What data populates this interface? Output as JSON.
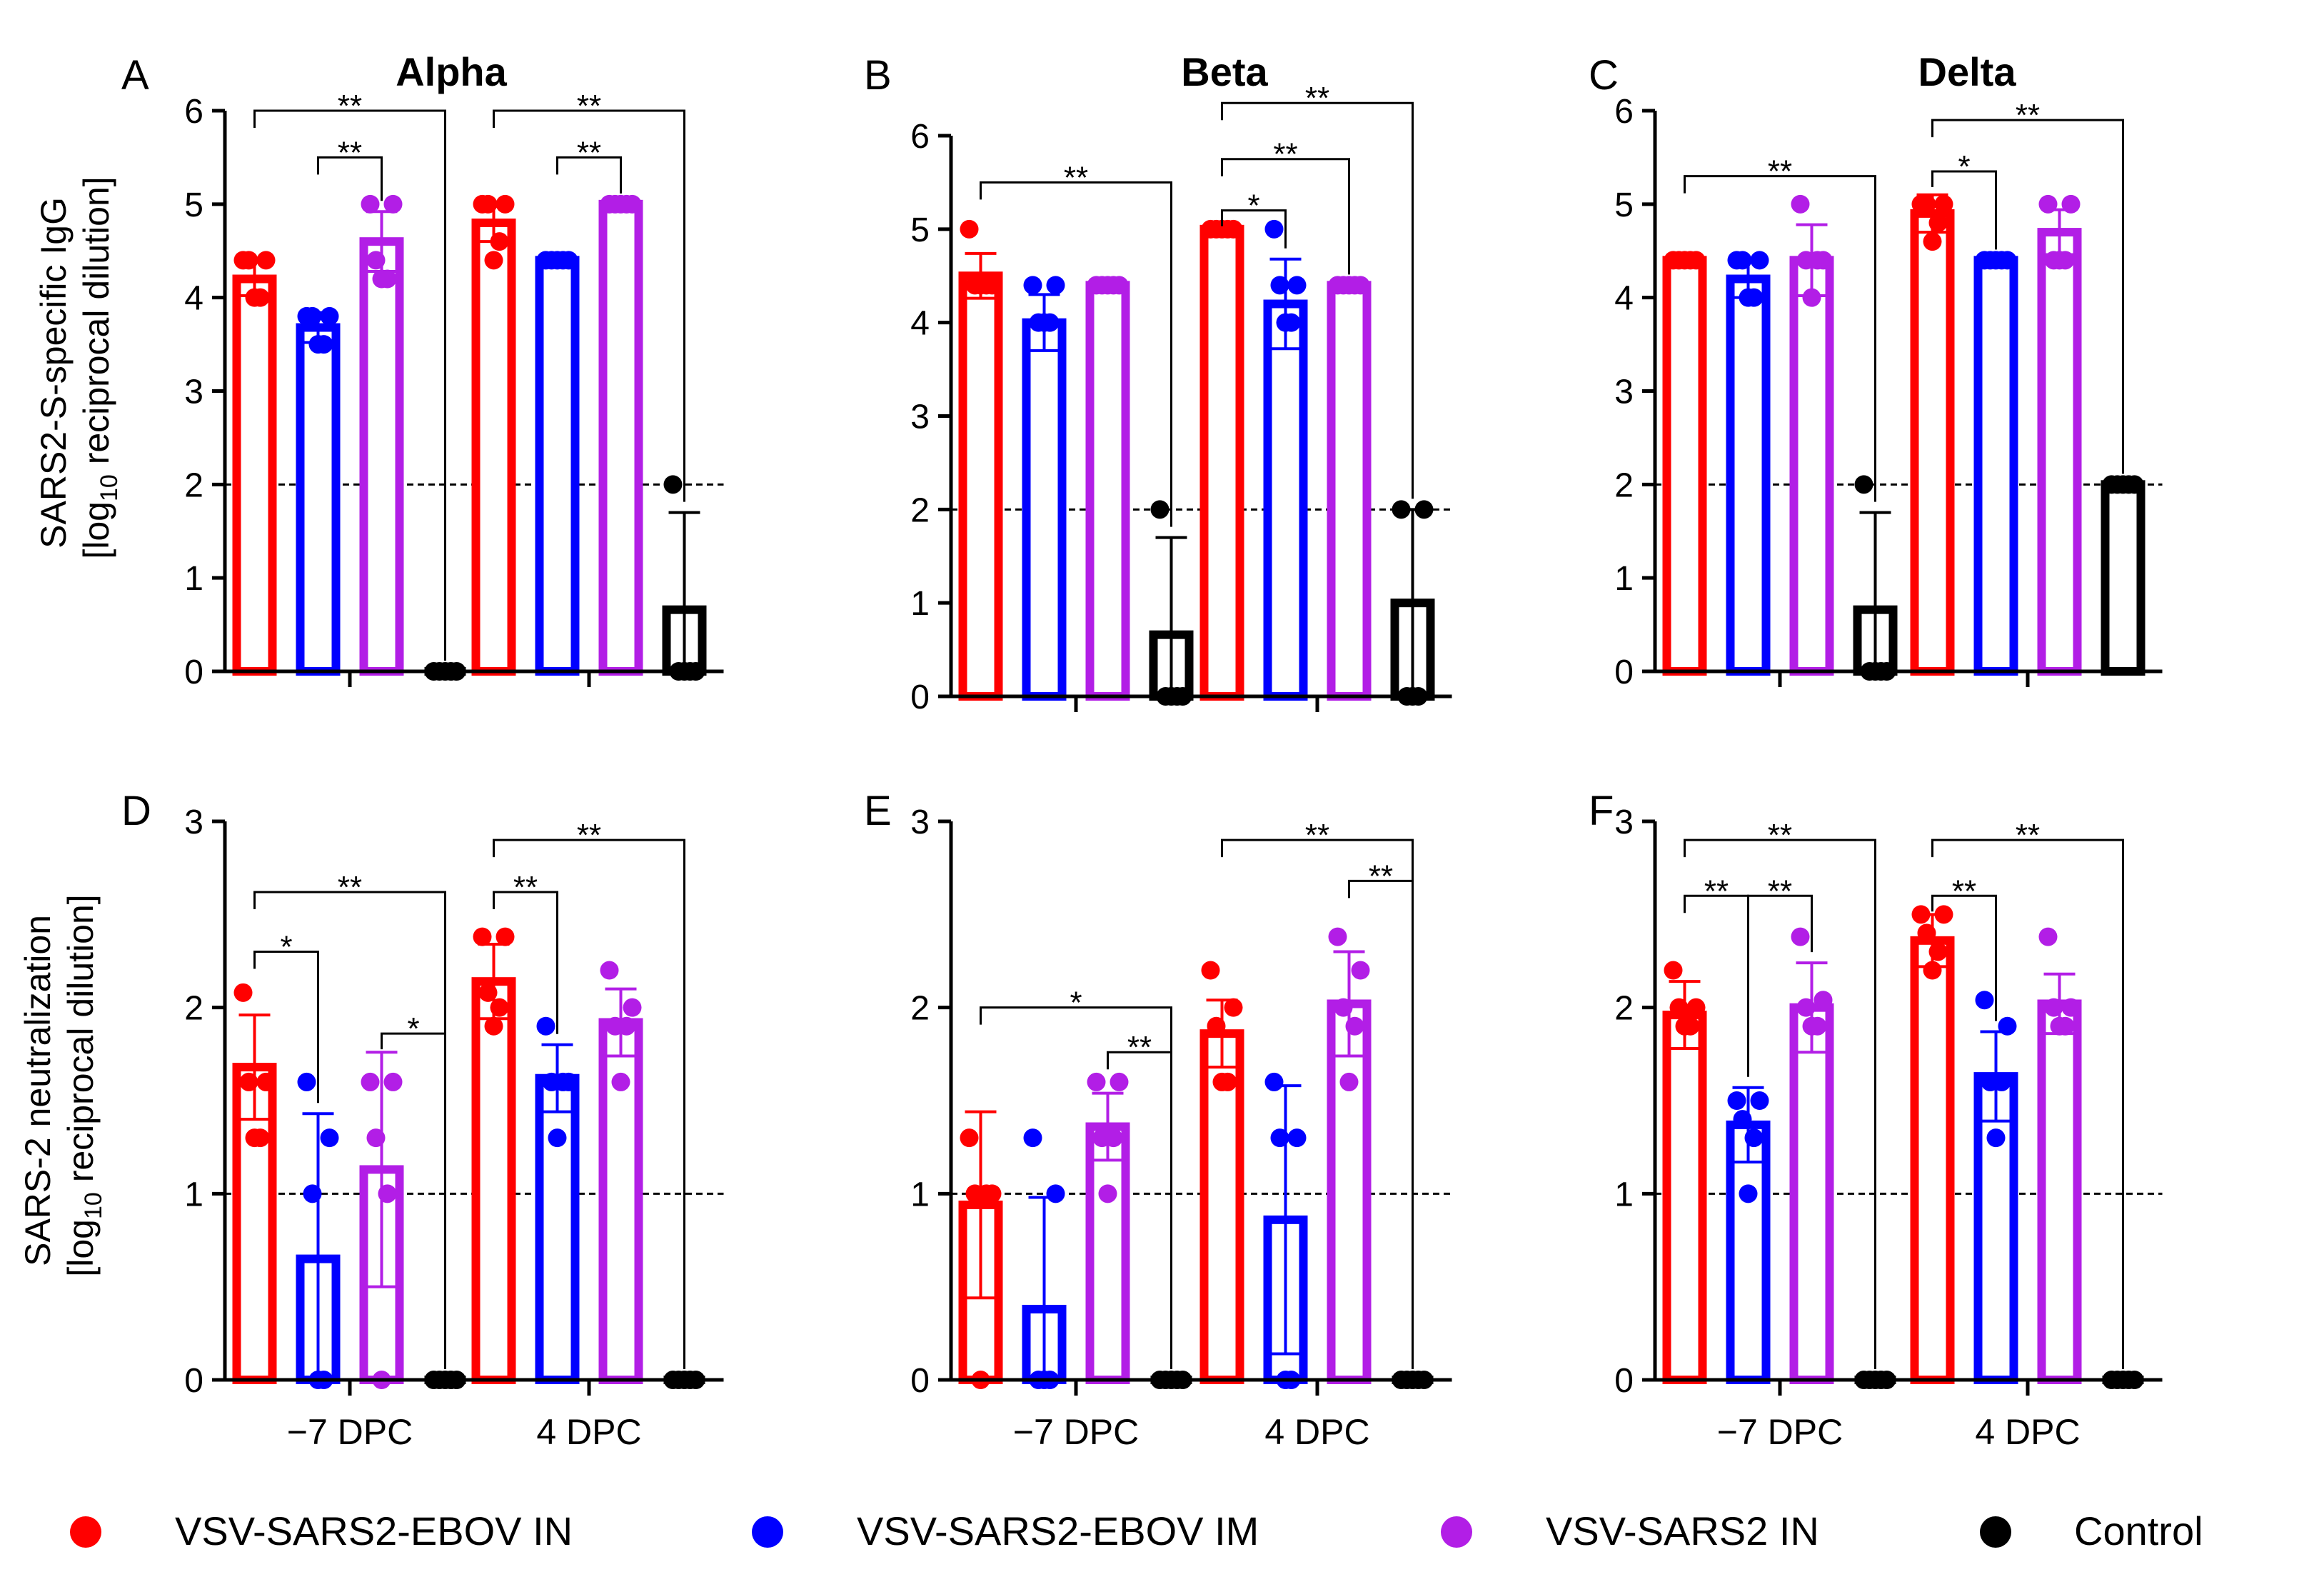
{
  "legend": [
    {
      "label": "VSV-SARS2-EBOV IN",
      "color": "#ff0000"
    },
    {
      "label": "VSV-SARS2-EBOV IM",
      "color": "#0000ff"
    },
    {
      "label": "VSV-SARS2 IN",
      "color": "#b21ee6"
    },
    {
      "label": "Control",
      "color": "#000000"
    }
  ],
  "row_labels": {
    "top_line1": "SARS2-S-specific IgG",
    "top_line2_pre": "[log",
    "top_line2_sub": "10",
    "top_line2_post": " reciprocal dilution]",
    "bottom_line1": "SARS-2 neutralization",
    "bottom_line2_pre": "[log",
    "bottom_line2_sub": "10",
    "bottom_line2_post": " reciprocal dilution]"
  },
  "chart_data": [
    {
      "panel": "A",
      "title": "Alpha",
      "type": "bar",
      "categories": [
        "−7 DPC",
        "4 DPC"
      ],
      "show_category_labels": false,
      "ylim": [
        0,
        6
      ],
      "yticks": [
        0,
        1,
        2,
        3,
        4,
        5,
        6
      ],
      "threshold": 2,
      "series": [
        {
          "name": "VSV-SARS2-EBOV IN",
          "color": "#ff0000",
          "values": [
            4.2,
            4.8
          ],
          "errors": [
            0.18,
            0.2
          ],
          "points": [
            [
              4.4,
              4.4,
              4.4,
              4.0,
              4.0
            ],
            [
              5.0,
              5.0,
              5.0,
              4.6,
              4.4
            ]
          ]
        },
        {
          "name": "VSV-SARS2-EBOV IM",
          "color": "#0000ff",
          "values": [
            3.68,
            4.4
          ],
          "errors": [
            0.16,
            0
          ],
          "points": [
            [
              3.8,
              3.8,
              3.8,
              3.5,
              3.5
            ],
            [
              4.4,
              4.4,
              4.4,
              4.4,
              4.4
            ]
          ]
        },
        {
          "name": "VSV-SARS2 IN",
          "color": "#b21ee6",
          "values": [
            4.6,
            5.0
          ],
          "errors": [
            0.32,
            0
          ],
          "points": [
            [
              5.0,
              5.0,
              4.4,
              4.2,
              4.2
            ],
            [
              5.0,
              5.0,
              5.0,
              5.0,
              5.0
            ]
          ]
        },
        {
          "name": "Control",
          "color": "#000000",
          "values": [
            0,
            0.66
          ],
          "errors": [
            0,
            1.04
          ],
          "points": [
            [
              0,
              0,
              0,
              0,
              0
            ],
            [
              2.0,
              0,
              0,
              0,
              0
            ]
          ]
        }
      ],
      "significance": [
        {
          "group": 0,
          "from": 0,
          "to": 3,
          "level": 6.0,
          "label": "**"
        },
        {
          "group": 0,
          "from": 1,
          "to": 2,
          "level": 5.5,
          "label": "**"
        },
        {
          "group": 1,
          "from": 0,
          "to": 3,
          "level": 6.0,
          "label": "**"
        },
        {
          "group": 1,
          "from": 1,
          "to": 2,
          "level": 5.5,
          "label": "**"
        }
      ]
    },
    {
      "panel": "B",
      "title": "Beta",
      "type": "bar",
      "categories": [
        "−7 DPC",
        "4 DPC"
      ],
      "show_category_labels": false,
      "ylim": [
        0,
        6
      ],
      "yticks": [
        0,
        1,
        2,
        3,
        4,
        5,
        6
      ],
      "threshold": 2,
      "series": [
        {
          "name": "VSV-SARS2-EBOV IN",
          "color": "#ff0000",
          "values": [
            4.5,
            5.0
          ],
          "errors": [
            0.24,
            0
          ],
          "points": [
            [
              5.0,
              4.4,
              4.4,
              4.4,
              4.4
            ],
            [
              5.0,
              5.0,
              5.0,
              5.0,
              5.0
            ]
          ]
        },
        {
          "name": "VSV-SARS2-EBOV IM",
          "color": "#0000ff",
          "values": [
            4.0,
            4.2
          ],
          "errors": [
            0.3,
            0.48
          ],
          "points": [
            [
              4.4,
              4.4,
              4.0,
              4.0,
              4.0
            ],
            [
              5.0,
              4.4,
              4.4,
              4.0,
              4.0
            ]
          ]
        },
        {
          "name": "VSV-SARS2 IN",
          "color": "#b21ee6",
          "values": [
            4.4,
            4.4
          ],
          "errors": [
            0,
            0
          ],
          "points": [
            [
              4.4,
              4.4,
              4.4,
              4.4,
              4.4
            ],
            [
              4.4,
              4.4,
              4.4,
              4.4,
              4.4
            ]
          ]
        },
        {
          "name": "Control",
          "color": "#000000",
          "values": [
            0.66,
            1.0
          ],
          "errors": [
            1.04,
            1.0
          ],
          "points": [
            [
              2.0,
              0,
              0,
              0,
              0
            ],
            [
              2.0,
              2.0,
              0,
              0,
              0
            ]
          ]
        }
      ],
      "significance": [
        {
          "group": 0,
          "from": 0,
          "to": 3,
          "level": 5.5,
          "label": "**"
        },
        {
          "group": 1,
          "from": 0,
          "to": 3,
          "level": 6.35,
          "label": "**"
        },
        {
          "group": 1,
          "from": 0,
          "to": 2,
          "level": 5.75,
          "label": "**"
        },
        {
          "group": 1,
          "from": 0,
          "to": 1,
          "level": 5.2,
          "label": "*"
        }
      ]
    },
    {
      "panel": "C",
      "title": "Delta",
      "type": "bar",
      "categories": [
        "−7 DPC",
        "4 DPC"
      ],
      "show_category_labels": false,
      "ylim": [
        0,
        6
      ],
      "yticks": [
        0,
        1,
        2,
        3,
        4,
        5,
        6
      ],
      "threshold": 2,
      "series": [
        {
          "name": "VSV-SARS2-EBOV IN",
          "color": "#ff0000",
          "values": [
            4.4,
            4.9
          ],
          "errors": [
            0,
            0.2
          ],
          "points": [
            [
              4.4,
              4.4,
              4.4,
              4.4,
              4.4
            ],
            [
              5.0,
              5.0,
              5.0,
              4.8,
              4.6
            ]
          ]
        },
        {
          "name": "VSV-SARS2-EBOV IM",
          "color": "#0000ff",
          "values": [
            4.2,
            4.4
          ],
          "errors": [
            0.2,
            0
          ],
          "points": [
            [
              4.4,
              4.4,
              4.4,
              4.0,
              4.0
            ],
            [
              4.4,
              4.4,
              4.4,
              4.4,
              4.4
            ]
          ]
        },
        {
          "name": "VSV-SARS2 IN",
          "color": "#b21ee6",
          "values": [
            4.4,
            4.7
          ],
          "errors": [
            0.38,
            0.24
          ],
          "points": [
            [
              5.0,
              4.4,
              4.4,
              4.4,
              4.0
            ],
            [
              5.0,
              5.0,
              4.4,
              4.4,
              4.4
            ]
          ]
        },
        {
          "name": "Control",
          "color": "#000000",
          "values": [
            0.66,
            2.0
          ],
          "errors": [
            1.04,
            0
          ],
          "points": [
            [
              2.0,
              0,
              0,
              0,
              0
            ],
            [
              2.0,
              2.0,
              2.0,
              2.0,
              2.0
            ]
          ]
        }
      ],
      "significance": [
        {
          "group": 0,
          "from": 0,
          "to": 3,
          "level": 5.3,
          "label": "**"
        },
        {
          "group": 1,
          "from": 0,
          "to": 3,
          "level": 5.9,
          "label": "**"
        },
        {
          "group": 1,
          "from": 0,
          "to": 1,
          "level": 5.35,
          "label": "*"
        }
      ]
    },
    {
      "panel": "D",
      "title": "",
      "type": "bar",
      "categories": [
        "−7 DPC",
        "4 DPC"
      ],
      "show_category_labels": true,
      "ylim": [
        0,
        3
      ],
      "yticks": [
        0,
        1,
        2,
        3
      ],
      "threshold": 1,
      "series": [
        {
          "name": "VSV-SARS2-EBOV IN",
          "color": "#ff0000",
          "values": [
            1.68,
            2.14
          ],
          "errors": [
            0.28,
            0.2
          ],
          "points": [
            [
              2.08,
              1.6,
              1.6,
              1.3,
              1.3
            ],
            [
              2.38,
              2.38,
              2.08,
              2.0,
              1.9
            ]
          ]
        },
        {
          "name": "VSV-SARS2-EBOV IM",
          "color": "#0000ff",
          "values": [
            0.65,
            1.62
          ],
          "errors": [
            0.78,
            0.18
          ],
          "points": [
            [
              1.6,
              1.3,
              1.0,
              0,
              0
            ],
            [
              1.9,
              1.6,
              1.6,
              1.6,
              1.3
            ]
          ]
        },
        {
          "name": "VSV-SARS2 IN",
          "color": "#b21ee6",
          "values": [
            1.13,
            1.92
          ],
          "errors": [
            0.63,
            0.18
          ],
          "points": [
            [
              1.6,
              1.6,
              1.3,
              1.0,
              0
            ],
            [
              2.2,
              2.0,
              1.9,
              1.9,
              1.6
            ]
          ]
        },
        {
          "name": "Control",
          "color": "#000000",
          "values": [
            0,
            0
          ],
          "errors": [
            0,
            0
          ],
          "points": [
            [
              0,
              0,
              0,
              0,
              0
            ],
            [
              0,
              0,
              0,
              0,
              0
            ]
          ]
        }
      ],
      "significance": [
        {
          "group": 0,
          "from": 0,
          "to": 3,
          "level": 2.62,
          "label": "**"
        },
        {
          "group": 0,
          "from": 0,
          "to": 1,
          "level": 2.3,
          "label": "*"
        },
        {
          "group": 0,
          "from": 2,
          "to": 3,
          "level": 1.86,
          "label": "*"
        },
        {
          "group": 1,
          "from": 0,
          "to": 3,
          "level": 2.9,
          "label": "**"
        },
        {
          "group": 1,
          "from": 0,
          "to": 1,
          "level": 2.62,
          "label": "**"
        }
      ]
    },
    {
      "panel": "E",
      "title": "",
      "type": "bar",
      "categories": [
        "−7 DPC",
        "4 DPC"
      ],
      "show_category_labels": true,
      "ylim": [
        0,
        3
      ],
      "yticks": [
        0,
        1,
        2,
        3
      ],
      "threshold": 1,
      "series": [
        {
          "name": "VSV-SARS2-EBOV IN",
          "color": "#ff0000",
          "values": [
            0.94,
            1.86
          ],
          "errors": [
            0.5,
            0.18
          ],
          "points": [
            [
              1.3,
              1.0,
              1.0,
              1.0,
              0
            ],
            [
              2.2,
              2.0,
              1.9,
              1.6,
              1.6
            ]
          ]
        },
        {
          "name": "VSV-SARS2-EBOV IM",
          "color": "#0000ff",
          "values": [
            0.38,
            0.86
          ],
          "errors": [
            0.6,
            0.72
          ],
          "points": [
            [
              1.3,
              1.0,
              0,
              0,
              0
            ],
            [
              1.6,
              1.3,
              1.3,
              0,
              0
            ]
          ]
        },
        {
          "name": "VSV-SARS2 IN",
          "color": "#b21ee6",
          "values": [
            1.36,
            2.02
          ],
          "errors": [
            0.18,
            0.28
          ],
          "points": [
            [
              1.6,
              1.6,
              1.3,
              1.3,
              1.0
            ],
            [
              2.38,
              2.2,
              2.0,
              1.9,
              1.6
            ]
          ]
        },
        {
          "name": "Control",
          "color": "#000000",
          "values": [
            0,
            0
          ],
          "errors": [
            0,
            0
          ],
          "points": [
            [
              0,
              0,
              0,
              0,
              0
            ],
            [
              0,
              0,
              0,
              0,
              0
            ]
          ]
        }
      ],
      "significance": [
        {
          "group": 0,
          "from": 0,
          "to": 3,
          "level": 2.0,
          "label": "*"
        },
        {
          "group": 0,
          "from": 2,
          "to": 3,
          "level": 1.76,
          "label": "**"
        },
        {
          "group": 1,
          "from": 0,
          "to": 3,
          "level": 2.9,
          "label": "**"
        },
        {
          "group": 1,
          "from": 2,
          "to": 3,
          "level": 2.68,
          "label": "**"
        }
      ]
    },
    {
      "panel": "F",
      "title": "",
      "type": "bar",
      "categories": [
        "−7 DPC",
        "4 DPC"
      ],
      "show_category_labels": true,
      "ylim": [
        0,
        3
      ],
      "yticks": [
        0,
        1,
        2,
        3
      ],
      "threshold": 1,
      "series": [
        {
          "name": "VSV-SARS2-EBOV IN",
          "color": "#ff0000",
          "values": [
            1.96,
            2.36
          ],
          "errors": [
            0.18,
            0.14
          ],
          "points": [
            [
              2.2,
              2.0,
              2.0,
              1.9,
              1.9
            ],
            [
              2.5,
              2.5,
              2.4,
              2.3,
              2.2
            ]
          ]
        },
        {
          "name": "VSV-SARS2-EBOV IM",
          "color": "#0000ff",
          "values": [
            1.37,
            1.63
          ],
          "errors": [
            0.2,
            0.24
          ],
          "points": [
            [
              1.5,
              1.5,
              1.4,
              1.3,
              1.0
            ],
            [
              2.04,
              1.9,
              1.6,
              1.6,
              1.3
            ]
          ]
        },
        {
          "name": "VSV-SARS2 IN",
          "color": "#b21ee6",
          "values": [
            2.0,
            2.02
          ],
          "errors": [
            0.24,
            0.16
          ],
          "points": [
            [
              2.38,
              2.04,
              2.0,
              1.9,
              1.9
            ],
            [
              2.38,
              2.0,
              2.0,
              1.9,
              1.9
            ]
          ]
        },
        {
          "name": "Control",
          "color": "#000000",
          "values": [
            0,
            0
          ],
          "errors": [
            0,
            0
          ],
          "points": [
            [
              0,
              0,
              0,
              0,
              0
            ],
            [
              0,
              0,
              0,
              0,
              0
            ]
          ]
        }
      ],
      "significance": [
        {
          "group": 0,
          "from": 0,
          "to": 3,
          "level": 2.9,
          "label": "**"
        },
        {
          "group": 0,
          "from": 0,
          "to": 1,
          "level": 2.6,
          "label": "**"
        },
        {
          "group": 0,
          "from": 1,
          "to": 2,
          "level": 2.6,
          "label": "**"
        },
        {
          "group": 1,
          "from": 0,
          "to": 3,
          "level": 2.9,
          "label": "**"
        },
        {
          "group": 1,
          "from": 0,
          "to": 1,
          "level": 2.6,
          "label": "**"
        }
      ]
    }
  ]
}
